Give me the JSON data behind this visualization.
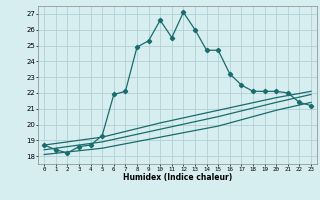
{
  "xlabel": "Humidex (Indice chaleur)",
  "xlim": [
    -0.5,
    23.5
  ],
  "ylim": [
    17.5,
    27.5
  ],
  "yticks": [
    18,
    19,
    20,
    21,
    22,
    23,
    24,
    25,
    26,
    27
  ],
  "xticks": [
    0,
    1,
    2,
    3,
    4,
    5,
    6,
    7,
    8,
    9,
    10,
    11,
    12,
    13,
    14,
    15,
    16,
    17,
    18,
    19,
    20,
    21,
    22,
    23
  ],
  "bg_color": "#d6eef0",
  "grid_color": "#b0d0d5",
  "line_color": "#1a6b6b",
  "line1_x": [
    0,
    1,
    2,
    3,
    4,
    5,
    6,
    7,
    8,
    9,
    10,
    11,
    12,
    13,
    14,
    15,
    16,
    17,
    18,
    19,
    20,
    21,
    22,
    23
  ],
  "line1_y": [
    18.7,
    18.4,
    18.2,
    18.6,
    18.7,
    19.3,
    21.9,
    22.1,
    24.9,
    25.3,
    26.6,
    25.5,
    27.1,
    26.0,
    24.7,
    24.7,
    23.2,
    22.5,
    22.1,
    22.1,
    22.1,
    22.0,
    21.4,
    21.2
  ],
  "line2_x": [
    0,
    5,
    10,
    15,
    20,
    23
  ],
  "line2_y": [
    18.1,
    18.5,
    19.2,
    19.9,
    20.9,
    21.4
  ],
  "line3_x": [
    0,
    5,
    10,
    15,
    20,
    23
  ],
  "line3_y": [
    18.4,
    18.9,
    19.7,
    20.5,
    21.4,
    21.9
  ],
  "line4_x": [
    0,
    5,
    10,
    15,
    20,
    23
  ],
  "line4_y": [
    18.7,
    19.2,
    20.1,
    20.9,
    21.7,
    22.1
  ]
}
